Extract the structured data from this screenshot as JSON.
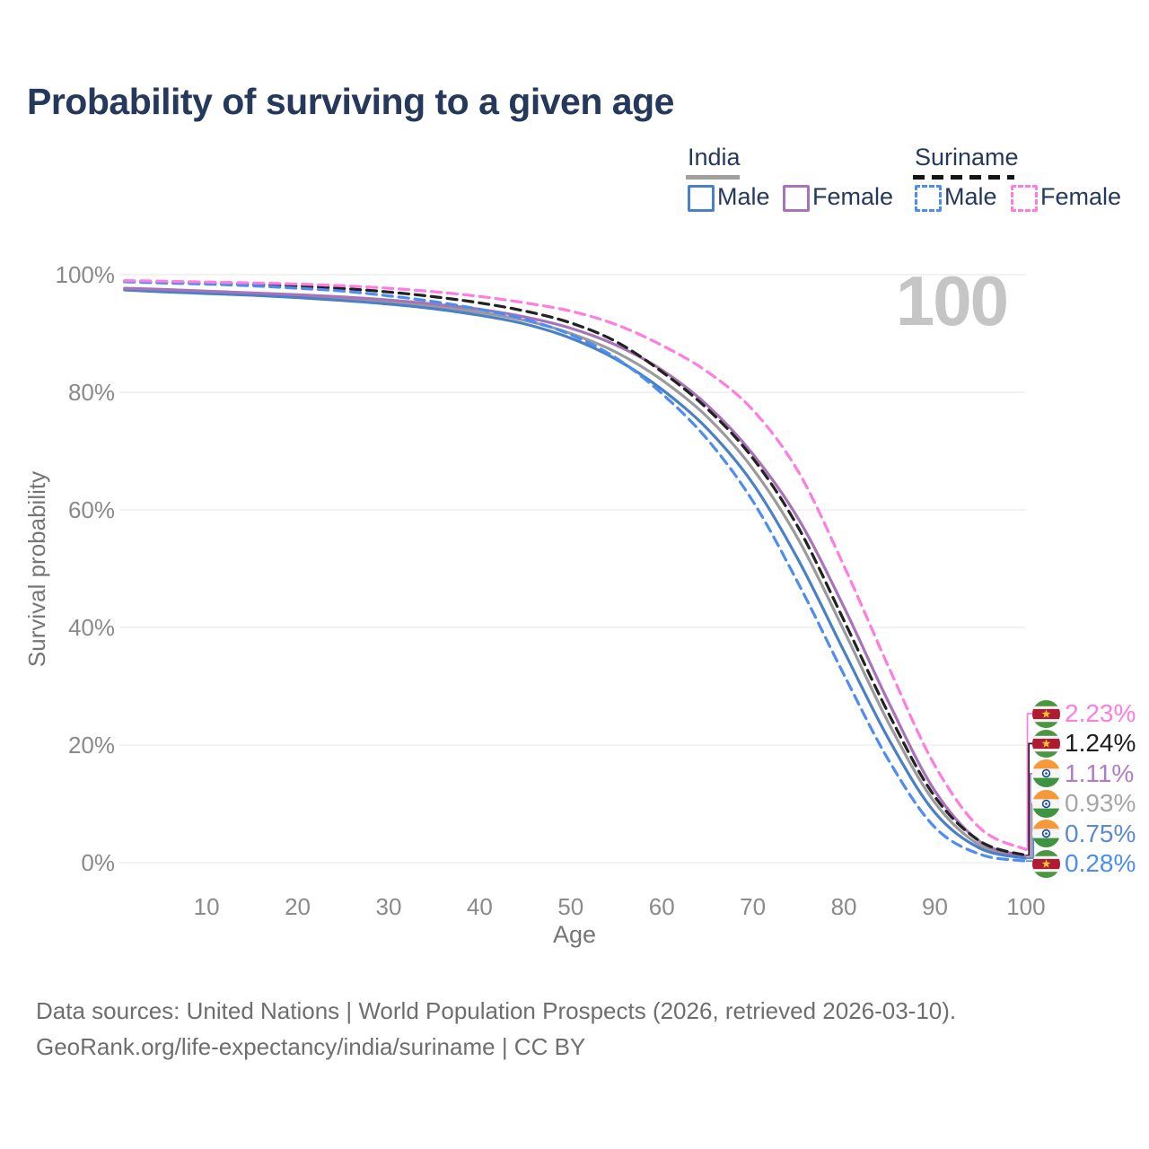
{
  "title": "Probability of surviving to a given age",
  "watermark_text": "100",
  "legend": {
    "groups": [
      {
        "name": "India",
        "style": "solid",
        "underline_color": "#a0a0a0",
        "items": [
          {
            "label": "Male",
            "color": "#4a80c5"
          },
          {
            "label": "Female",
            "color": "#a873b8"
          }
        ]
      },
      {
        "name": "Suriname",
        "style": "dashed",
        "underline_color": "#151515",
        "items": [
          {
            "label": "Male",
            "color": "#4d8df0"
          },
          {
            "label": "Female",
            "color": "#ff7ce0"
          }
        ]
      }
    ]
  },
  "axes": {
    "y": {
      "label": "Survival probability",
      "ticks": [
        "0%",
        "20%",
        "40%",
        "60%",
        "80%",
        "100%"
      ],
      "tick_values": [
        0,
        20,
        40,
        60,
        80,
        100
      ]
    },
    "x": {
      "label": "Age",
      "tick_values": [
        10,
        20,
        30,
        40,
        50,
        60,
        70,
        80,
        90,
        100
      ]
    }
  },
  "chart_data": {
    "type": "line",
    "title": "Probability of surviving to a given age",
    "xlabel": "Age",
    "ylabel": "Survival probability",
    "xlim": [
      0,
      100
    ],
    "ylim": [
      0,
      100
    ],
    "grid": true,
    "legend_position": "top-right",
    "x": [
      1,
      5,
      10,
      15,
      20,
      25,
      30,
      35,
      40,
      45,
      50,
      55,
      60,
      65,
      70,
      75,
      80,
      85,
      90,
      95,
      100
    ],
    "series": [
      {
        "name": "India Total",
        "color": "#9b9b9b",
        "dash": false,
        "values": [
          97.6,
          97.3,
          97.0,
          96.7,
          96.3,
          95.9,
          95.3,
          94.6,
          93.6,
          92.2,
          90.0,
          86.8,
          82.1,
          75.8,
          67.0,
          55.0,
          39.5,
          23.5,
          10.2,
          2.9,
          0.93
        ]
      },
      {
        "name": "India Male",
        "color": "#4a80c5",
        "dash": false,
        "values": [
          97.4,
          97.1,
          96.8,
          96.5,
          96.1,
          95.6,
          95.0,
          94.2,
          93.1,
          91.6,
          89.2,
          85.6,
          80.5,
          73.8,
          64.5,
          51.5,
          36.0,
          20.8,
          8.5,
          2.4,
          0.75
        ]
      },
      {
        "name": "India Female",
        "color": "#a873b8",
        "dash": false,
        "values": [
          97.7,
          97.5,
          97.2,
          96.9,
          96.6,
          96.2,
          95.7,
          95.0,
          94.1,
          92.8,
          90.9,
          88.0,
          83.8,
          77.8,
          69.5,
          58.5,
          43.5,
          27.0,
          12.2,
          3.5,
          1.11
        ]
      },
      {
        "name": "Suriname Total",
        "color": "#222222",
        "dash": true,
        "values": [
          98.9,
          98.75,
          98.6,
          98.35,
          98.05,
          97.65,
          97.05,
          96.25,
          95.2,
          93.8,
          91.8,
          88.6,
          83.5,
          77.2,
          68.8,
          57.0,
          41.2,
          25.1,
          11.2,
          3.6,
          1.24
        ]
      },
      {
        "name": "Suriname Male",
        "color": "#4d8df0",
        "dash": true,
        "values": [
          98.8,
          98.6,
          98.4,
          98.1,
          97.7,
          97.2,
          96.4,
          95.4,
          94.1,
          92.4,
          89.8,
          85.8,
          79.8,
          72.0,
          61.5,
          47.5,
          32.0,
          17.2,
          6.0,
          1.4,
          0.28
        ]
      },
      {
        "name": "Suriname Female",
        "color": "#ff7ce0",
        "dash": true,
        "values": [
          99.0,
          98.9,
          98.75,
          98.6,
          98.4,
          98.1,
          97.7,
          97.1,
          96.3,
          95.2,
          93.8,
          91.5,
          88.0,
          83.5,
          77.0,
          66.5,
          50.5,
          33.0,
          16.5,
          5.8,
          2.23
        ]
      }
    ],
    "end_labels": [
      {
        "text": "2.23%",
        "value": 2.23,
        "color": "#ff7ce0",
        "flag": "suriname",
        "series": "Suriname Female"
      },
      {
        "text": "1.24%",
        "value": 1.24,
        "color": "#1d1d1d",
        "flag": "suriname",
        "series": "Suriname Total"
      },
      {
        "text": "1.11%",
        "value": 1.11,
        "color": "#b07cc4",
        "flag": "india",
        "series": "India Female"
      },
      {
        "text": "0.93%",
        "value": 0.93,
        "color": "#a6a6a6",
        "flag": "india",
        "series": "India Total"
      },
      {
        "text": "0.75%",
        "value": 0.75,
        "color": "#5d89d0",
        "flag": "india",
        "series": "India Male"
      },
      {
        "text": "0.28%",
        "value": 0.28,
        "color": "#4d8df0",
        "flag": "suriname",
        "series": "Suriname Male"
      }
    ]
  },
  "flags": {
    "india": {
      "top": "#f59a3a",
      "mid": "#f6f6f6",
      "bottom": "#3f9442",
      "chakra": "#1a4ba0"
    },
    "suriname": {
      "green": "#4d9641",
      "white": "#f6f6f6",
      "red": "#b01b34",
      "star": "#edc531"
    }
  },
  "footer": {
    "line1": "Data sources: United Nations | World Population Prospects (2026, retrieved 2026-03-10).",
    "line2": "GeoRank.org/life-expectancy/india/suriname | CC BY"
  },
  "ui_colors": {
    "title": "#24395b",
    "watermark": "#c5c5c5",
    "gridline": "#ededed",
    "axis_text": "#8a8a8a"
  }
}
